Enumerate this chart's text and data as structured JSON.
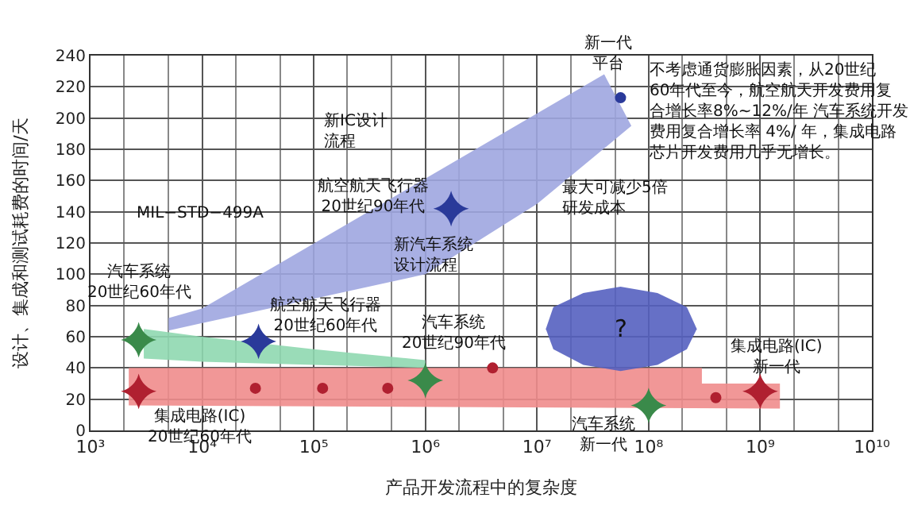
{
  "chart_data": {
    "type": "scatter",
    "xlabel": "产品开发流程中的复杂度",
    "ylabel": "设计、集成和测试耗费的时间/天",
    "log": "x",
    "grid": true,
    "xlim": [
      1000,
      10000000000
    ],
    "xticks": [
      {
        "value": 1000,
        "label": "10³"
      },
      {
        "value": 10000,
        "label": "10⁴"
      },
      {
        "value": 100000,
        "label": "10⁵"
      },
      {
        "value": 1000000,
        "label": "10⁶"
      },
      {
        "value": 10000000,
        "label": "10⁷"
      },
      {
        "value": 100000000,
        "label": "10⁸"
      },
      {
        "value": 1000000000,
        "label": "10⁹"
      },
      {
        "value": 10000000000,
        "label": "10¹⁰"
      }
    ],
    "ylim": [
      0,
      240
    ],
    "yticks": [
      0,
      20,
      40,
      60,
      80,
      100,
      120,
      140,
      160,
      180,
      200,
      220,
      240
    ],
    "series": [
      {
        "type": "area",
        "color": "#9fa6e0",
        "x": [
          5000,
          1000000,
          10000000,
          70000000,
          40000000,
          10000,
          5000
        ],
        "values": [
          64,
          100,
          145,
          195,
          228,
          78,
          72
        ]
      },
      {
        "type": "area",
        "color": "#8fd8b0",
        "x": [
          3000,
          10000,
          100000,
          1000000,
          1000000,
          100000,
          10000,
          3000
        ],
        "values": [
          65,
          60,
          52,
          45,
          40,
          42,
          44,
          46
        ]
      },
      {
        "type": "area",
        "color": "#f08c8c",
        "x": [
          2200,
          300000000,
          300000000,
          1500000000,
          1500000000,
          2200
        ],
        "values": [
          40,
          40,
          30,
          30,
          14,
          16
        ]
      },
      {
        "type": "area",
        "color": "#5560c0",
        "x": [
          270000000,
          220000000,
          120000000,
          56000000,
          26000000,
          14000000,
          12000000,
          14000000,
          26000000,
          56000000,
          120000000,
          220000000
        ],
        "values": [
          65,
          79,
          88,
          92,
          88,
          79,
          65,
          52,
          42,
          38,
          42,
          52
        ]
      },
      {
        "marker": "star",
        "color": "#3a8a4a",
        "x": [
          2700,
          1000000,
          100000000
        ],
        "values": [
          58,
          32,
          16
        ]
      },
      {
        "marker": "star",
        "color": "#2a3a9a",
        "x": [
          32000,
          1700000
        ],
        "values": [
          57,
          142
        ]
      },
      {
        "marker": "star",
        "color": "#b02030",
        "x": [
          2700,
          1000000000
        ],
        "values": [
          25,
          25
        ]
      },
      {
        "marker": "circle",
        "color": "#b02030",
        "x": [
          30000,
          120000,
          460000,
          4000000,
          400000000
        ],
        "values": [
          27,
          27,
          27,
          40,
          21
        ]
      },
      {
        "marker": "circle",
        "color": "#2a3a9a",
        "x": [
          56000000
        ],
        "values": [
          213
        ]
      }
    ],
    "annotations": [
      {
        "text": "汽车系统20世纪60年代",
        "x": 2700,
        "y": 58
      },
      {
        "text": "航空航天飞行器20世纪60年代",
        "x": 32000,
        "y": 57
      },
      {
        "text": "集成电路(IC)20世纪60年代",
        "x": 2700,
        "y": 25
      },
      {
        "text": "汽车系统20世纪90年代",
        "x": 1000000,
        "y": 32
      },
      {
        "text": "汽车系统新一代",
        "x": 100000000,
        "y": 16
      },
      {
        "text": "集成电路(IC)新一代",
        "x": 1000000000,
        "y": 25
      },
      {
        "text": "航空航天飞行器20世纪90年代",
        "x": 1700000,
        "y": 142
      },
      {
        "text": "新一代平台",
        "x": 56000000,
        "y": 213
      },
      "MIL−STD−499A",
      "新IC设计流程",
      "新汽车系统设计流程",
      "最大可减少5倍研发成本",
      "不考虑通货膨胀因素，从20世纪60年代至今，航空航天开发费用复合增长率8%~12%/年 汽车系统开发费用复合增长率 4%/ 年，集成电路芯片开发费用几乎无增长。",
      "?"
    ]
  }
}
